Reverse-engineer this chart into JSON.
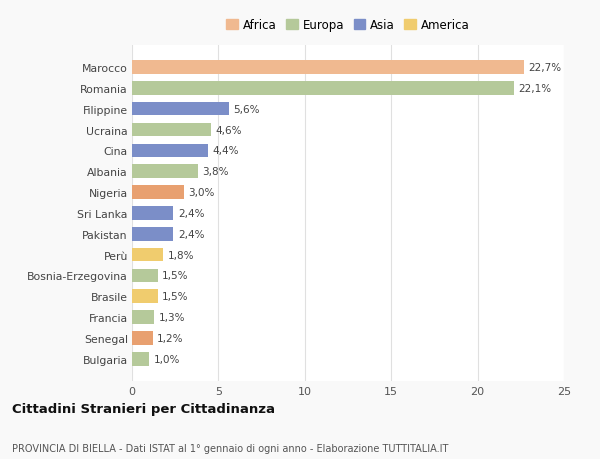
{
  "categories": [
    "Bulgaria",
    "Senegal",
    "Francia",
    "Brasile",
    "Bosnia-Erzegovina",
    "Perù",
    "Pakistan",
    "Sri Lanka",
    "Nigeria",
    "Albania",
    "Cina",
    "Ucraina",
    "Filippine",
    "Romania",
    "Marocco"
  ],
  "values": [
    1.0,
    1.2,
    1.3,
    1.5,
    1.5,
    1.8,
    2.4,
    2.4,
    3.0,
    3.8,
    4.4,
    4.6,
    5.6,
    22.1,
    22.7
  ],
  "labels": [
    "1,0%",
    "1,2%",
    "1,3%",
    "1,5%",
    "1,5%",
    "1,8%",
    "2,4%",
    "2,4%",
    "3,0%",
    "3,8%",
    "4,4%",
    "4,6%",
    "5,6%",
    "22,1%",
    "22,7%"
  ],
  "colors": [
    "#b5c99a",
    "#e8a070",
    "#b5c99a",
    "#f0cc6e",
    "#b5c99a",
    "#f0cc6e",
    "#7b8ec8",
    "#7b8ec8",
    "#e8a070",
    "#b5c99a",
    "#7b8ec8",
    "#b5c99a",
    "#7b8ec8",
    "#b5c99a",
    "#f0b990"
  ],
  "continents": [
    "Europa",
    "Africa",
    "Europa",
    "America",
    "Europa",
    "America",
    "Asia",
    "Asia",
    "Africa",
    "Europa",
    "Asia",
    "Europa",
    "Asia",
    "Europa",
    "Africa"
  ],
  "legend_labels": [
    "Africa",
    "Europa",
    "Asia",
    "America"
  ],
  "legend_colors": [
    "#f0b990",
    "#b5c99a",
    "#7b8ec8",
    "#f0cc6e"
  ],
  "title": "Cittadini Stranieri per Cittadinanza",
  "subtitle": "PROVINCIA DI BIELLA - Dati ISTAT al 1° gennaio di ogni anno - Elaborazione TUTTITALIA.IT",
  "xlim": [
    0,
    25
  ],
  "xticks": [
    0,
    5,
    10,
    15,
    20,
    25
  ],
  "background_color": "#f9f9f9",
  "bar_background": "#ffffff",
  "grid_color": "#e0e0e0"
}
